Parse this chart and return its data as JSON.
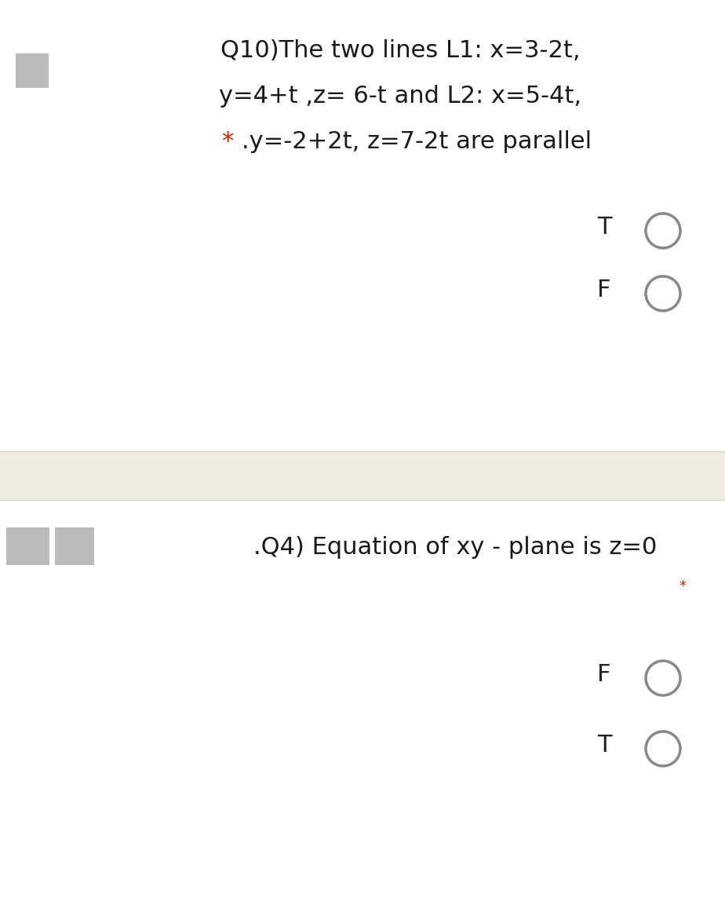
{
  "bg_color": "#ffffff",
  "separator_color": "#f0ece0",
  "separator_border_color": "#d8d4c8",
  "q10_line1": "Q10)The two lines L1: x=3-2t,",
  "q10_line2": "y=4+t ,z= 6-t and L2: x=5-4t,",
  "q10_line3_star": "* ",
  "q10_line3_text": ".y=-2+2t, z=7-2t are parallel",
  "q10_text_color": "#1a1a1a",
  "star_color": "#cc2200",
  "radio_T_label": "T",
  "radio_F_label": "F",
  "label_color": "#222222",
  "circle_edge_color": "#888888",
  "circle_linewidth": 2.5,
  "q4_line1": ".Q4) Equation of xy - plane is z=0",
  "q4_star": "*",
  "gray_box_color": "#bbbbbb",
  "font_size_main": 22,
  "font_size_star_q4": 13,
  "fig_width": 9.24,
  "fig_height": 11.48,
  "dpi": 100
}
